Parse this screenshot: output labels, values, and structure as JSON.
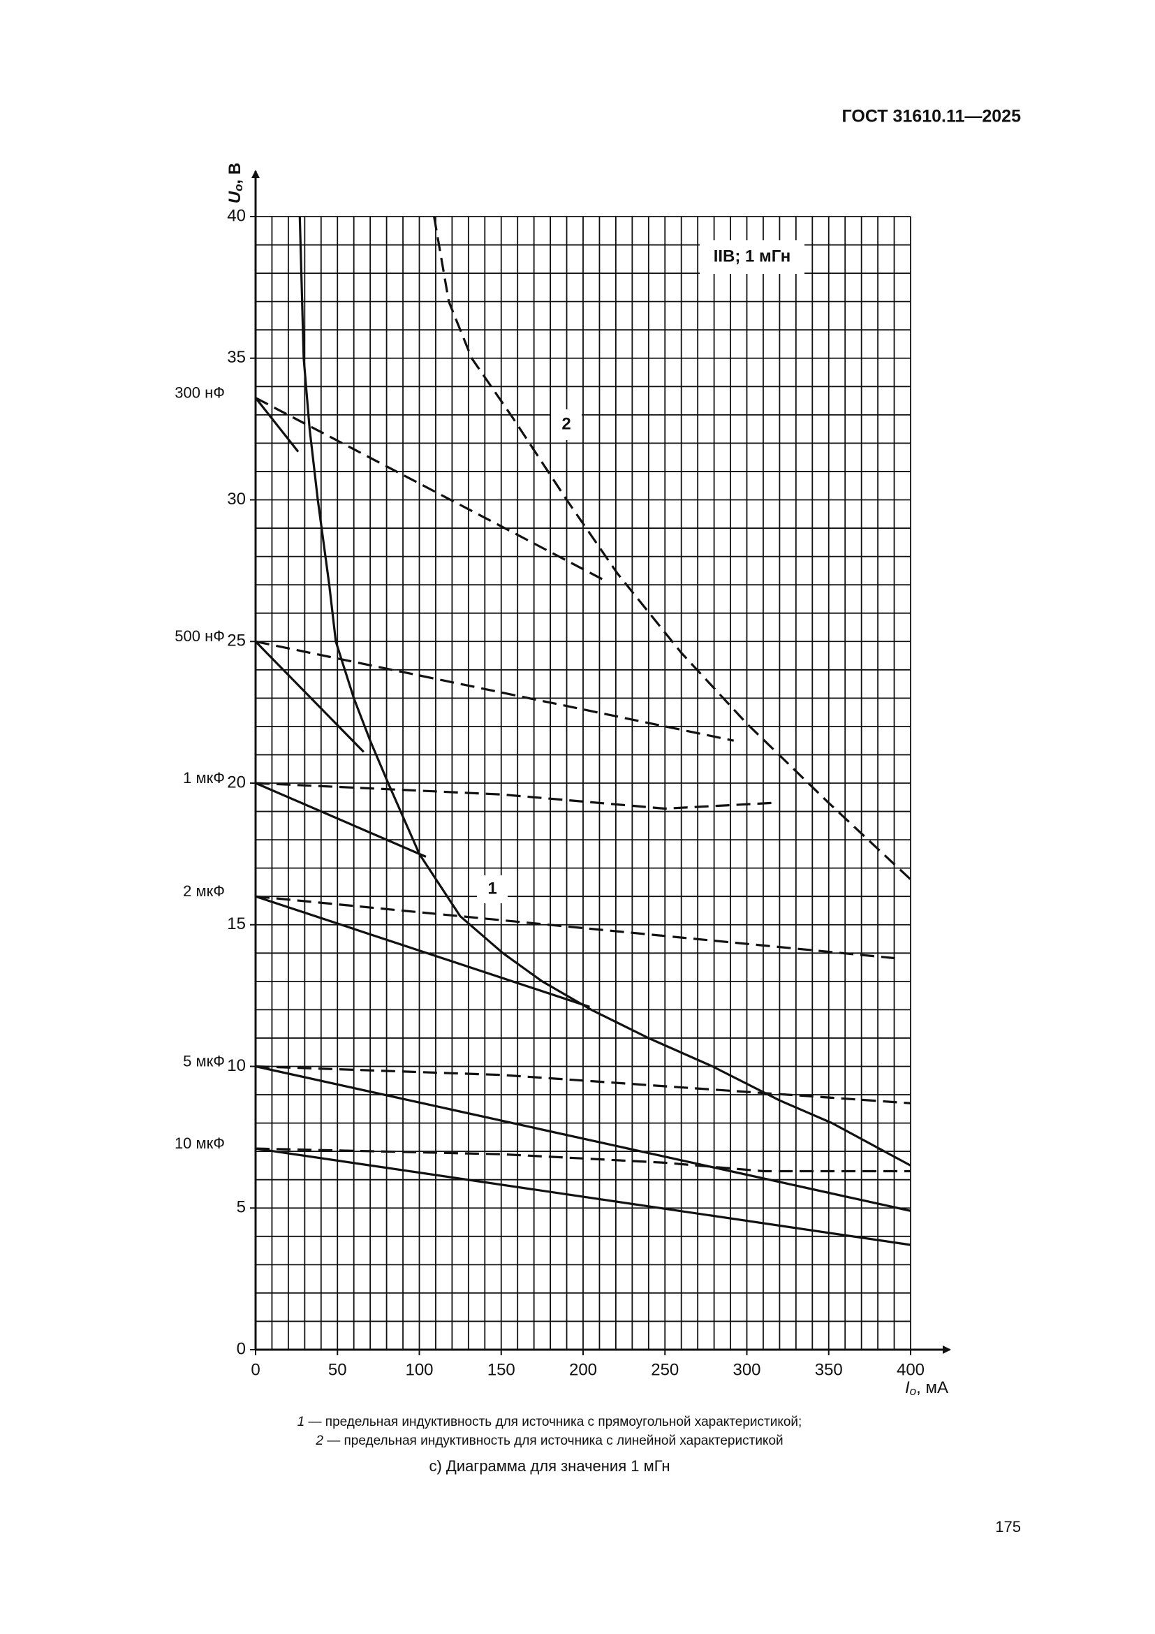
{
  "header": "ГОСТ 31610.11—2025",
  "chart_data": {
    "type": "line",
    "y_label": {
      "symbol": "U",
      "subscript": "o",
      "suffix": ", В"
    },
    "x_label": {
      "symbol": "I",
      "subscript": "o",
      "suffix": ", мА"
    },
    "xlim": [
      0,
      400
    ],
    "ylim": [
      0,
      40
    ],
    "xticks": [
      0,
      50,
      100,
      150,
      200,
      250,
      300,
      350,
      400
    ],
    "yticks": [
      0,
      5,
      10,
      15,
      20,
      25,
      30,
      35,
      40
    ],
    "x_grid": [
      0,
      10,
      20,
      30,
      40,
      50,
      60,
      70,
      80,
      90,
      100,
      110,
      120,
      130,
      140,
      150,
      160,
      170,
      180,
      190,
      200,
      210,
      220,
      230,
      240,
      250,
      260,
      270,
      280,
      290,
      300,
      310,
      320,
      330,
      340,
      350,
      360,
      370,
      380,
      390,
      400
    ],
    "y_grid": [
      0,
      1,
      2,
      3,
      4,
      5,
      6,
      7,
      8,
      9,
      10,
      11,
      12,
      13,
      14,
      15,
      16,
      17,
      18,
      19,
      20,
      21,
      22,
      23,
      24,
      25,
      26,
      27,
      28,
      29,
      30,
      31,
      32,
      33,
      34,
      35,
      36,
      37,
      38,
      39,
      40
    ],
    "color": "#111111",
    "annotation": "IIB; 1 мГн",
    "series": [
      {
        "name": "1",
        "dashed": false,
        "x": [
          27,
          29.4,
          33,
          38,
          45,
          49,
          60,
          70,
          81,
          100,
          125,
          151,
          175,
          205,
          240,
          279,
          320,
          352,
          400
        ],
        "values": [
          40,
          35,
          32.5,
          30,
          27,
          25,
          23,
          21.5,
          20,
          17.5,
          15.3,
          14,
          13,
          12,
          11,
          10,
          8.8,
          8,
          6.5
        ]
      },
      {
        "name": "2",
        "dashed": true,
        "x": [
          109,
          118,
          132,
          157,
          190,
          221,
          260,
          300,
          350,
          400
        ],
        "values": [
          40,
          37,
          35,
          32.9,
          30,
          27.4,
          24.6,
          22.1,
          19.3,
          16.6
        ]
      }
    ],
    "capacitances": [
      {
        "label": "300 нФ",
        "lines": [
          {
            "dashed": false,
            "x": [
              0,
              26
            ],
            "values": [
              33.6,
              31.7
            ]
          },
          {
            "dashed": true,
            "x": [
              0,
              215
            ],
            "values": [
              33.6,
              27.1
            ]
          }
        ]
      },
      {
        "label": "500 нФ",
        "lines": [
          {
            "dashed": false,
            "x": [
              0,
              66
            ],
            "values": [
              25,
              21.1
            ]
          },
          {
            "dashed": true,
            "x": [
              0,
              292
            ],
            "values": [
              25,
              21.5
            ]
          }
        ]
      },
      {
        "label": "1 мкФ",
        "lines": [
          {
            "dashed": false,
            "x": [
              0,
              104
            ],
            "values": [
              20,
              17.4
            ]
          },
          {
            "dashed": true,
            "x": [
              0,
              150,
              250,
              315
            ],
            "values": [
              20,
              19.6,
              19.1,
              19.3
            ]
          }
        ]
      },
      {
        "label": "2 мкФ",
        "lines": [
          {
            "dashed": false,
            "x": [
              0,
              204
            ],
            "values": [
              16,
              12.1
            ]
          },
          {
            "dashed": true,
            "x": [
              0,
              394
            ],
            "values": [
              16,
              13.8
            ]
          }
        ]
      },
      {
        "label": "5 мкФ",
        "lines": [
          {
            "dashed": false,
            "x": [
              0,
              400
            ],
            "values": [
              10,
              4.9
            ]
          },
          {
            "dashed": true,
            "x": [
              0,
              150,
              300,
              400
            ],
            "values": [
              10,
              9.7,
              9.1,
              8.7
            ]
          }
        ]
      },
      {
        "label": "10 мкФ",
        "lines": [
          {
            "dashed": false,
            "x": [
              0,
              400
            ],
            "values": [
              7.1,
              3.7
            ]
          },
          {
            "dashed": true,
            "x": [
              0,
              150,
              250,
              310,
              400
            ],
            "values": [
              7.1,
              6.9,
              6.6,
              6.3,
              6.3
            ]
          }
        ]
      }
    ]
  },
  "notes": [
    {
      "key": "1",
      "text": " — предельная индуктивность для источника с прямоугольной характеристикой;"
    },
    {
      "key": "2",
      "text": " — предельная индуктивность для источника с линейной характеристикой"
    }
  ],
  "caption": "с) Диаграмма для значения 1 мГн",
  "page_number": "175"
}
